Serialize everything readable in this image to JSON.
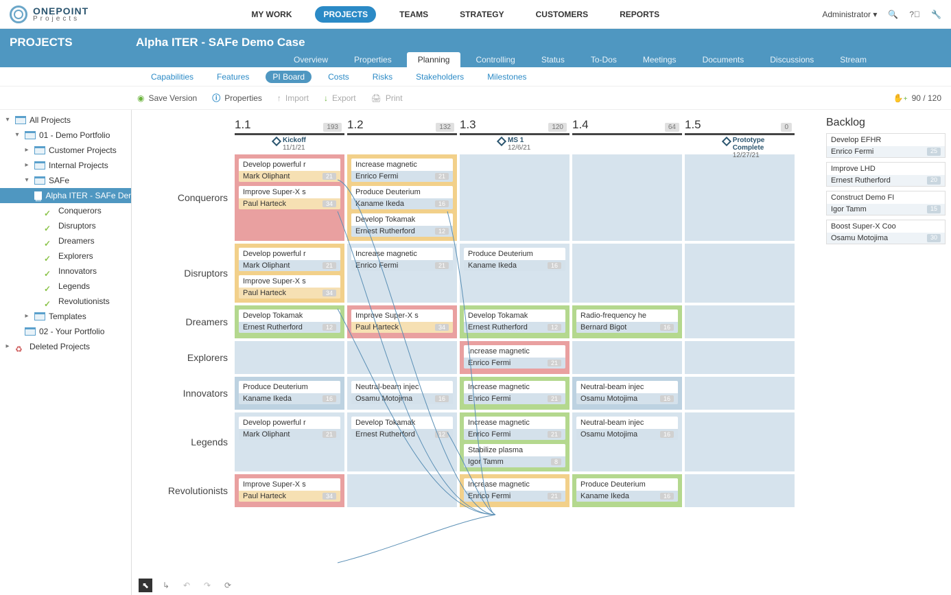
{
  "brand": {
    "line1": "ONEPOINT",
    "line2": "Projects"
  },
  "main_nav": [
    "MY WORK",
    "PROJECTS",
    "TEAMS",
    "STRATEGY",
    "CUSTOMERS",
    "REPORTS"
  ],
  "main_nav_active": "PROJECTS",
  "user_menu": "Administrator ▾",
  "section_label": "PROJECTS",
  "page_title": "Alpha ITER - SAFe Demo Case",
  "project_tabs": [
    "Overview",
    "Properties",
    "Planning",
    "Controlling",
    "Status",
    "To-Dos",
    "Meetings",
    "Documents",
    "Discussions",
    "Stream"
  ],
  "project_tab_active": "Planning",
  "sub_tabs": [
    "Capabilities",
    "Features",
    "PI Board",
    "Costs",
    "Risks",
    "Stakeholders",
    "Milestones"
  ],
  "sub_tab_active": "PI Board",
  "toolbar": {
    "save": "Save Version",
    "props": "Properties",
    "import": "Import",
    "export": "Export",
    "print": "Print",
    "counter": "90 / 120"
  },
  "tree": [
    {
      "t": "▾",
      "ic": "f",
      "label": "All Projects",
      "ind": 0
    },
    {
      "t": "▾",
      "ic": "f",
      "label": "01 - Demo Portfolio",
      "ind": 1
    },
    {
      "t": "▸",
      "ic": "f",
      "label": "Customer Projects",
      "ind": 2
    },
    {
      "t": "▸",
      "ic": "f",
      "label": "Internal Projects",
      "ind": 2
    },
    {
      "t": "▾",
      "ic": "f",
      "label": "SAFe",
      "ind": 2
    },
    {
      "t": "",
      "ic": "p",
      "label": "Alpha ITER - SAFe Demo",
      "ind": 3,
      "sel": true
    },
    {
      "t": "",
      "ic": "tm",
      "label": "Conquerors",
      "ind": 3
    },
    {
      "t": "",
      "ic": "tm",
      "label": "Disruptors",
      "ind": 3
    },
    {
      "t": "",
      "ic": "tm",
      "label": "Dreamers",
      "ind": 3
    },
    {
      "t": "",
      "ic": "tm",
      "label": "Explorers",
      "ind": 3
    },
    {
      "t": "",
      "ic": "tm",
      "label": "Innovators",
      "ind": 3
    },
    {
      "t": "",
      "ic": "tm",
      "label": "Legends",
      "ind": 3
    },
    {
      "t": "",
      "ic": "tm",
      "label": "Revolutionists",
      "ind": 3
    },
    {
      "t": "▸",
      "ic": "f",
      "label": "Templates",
      "ind": 2
    },
    {
      "t": "",
      "ic": "f",
      "label": "02 - Your Portfolio",
      "ind": 1
    },
    {
      "t": "▸",
      "ic": "tr",
      "label": "Deleted Projects",
      "ind": 0
    }
  ],
  "columns": [
    {
      "num": "1.1",
      "badge": "193"
    },
    {
      "num": "1.2",
      "badge": "132"
    },
    {
      "num": "1.3",
      "badge": "120"
    },
    {
      "num": "1.4",
      "badge": "64"
    },
    {
      "num": "1.5",
      "badge": "0"
    }
  ],
  "milestones": [
    {
      "col": 0,
      "title": "Kickoff",
      "date": "11/1/21"
    },
    {
      "col": 2,
      "title": "MS 1",
      "date": "12/6/21"
    },
    {
      "col": 4,
      "title": "Prototype Complete",
      "date": "12/27/21"
    }
  ],
  "colors": {
    "cell_blue": "#d6e3ed",
    "cell_dblue": "#bdd2e1",
    "card_orange": "#f2d08a",
    "card_red": "#e9a0a0",
    "card_green": "#b4d88e"
  },
  "rows": [
    {
      "name": "Conquerors",
      "cells": [
        {
          "bg": "red",
          "cards": [
            {
              "c": "orange",
              "t": "Develop powerful r",
              "a": "Mark Oliphant",
              "p": "21"
            },
            {
              "c": "orange",
              "t": "Improve Super-X s",
              "a": "Paul Harteck",
              "p": "34"
            }
          ]
        },
        {
          "bg": "orange",
          "cards": [
            {
              "c": "blue",
              "t": "Increase magnetic",
              "a": "Enrico Fermi",
              "p": "21"
            },
            {
              "c": "blue",
              "t": "Produce Deuterium",
              "a": "Kaname Ikeda",
              "p": "16"
            },
            {
              "c": "blue",
              "t": "Develop Tokamak",
              "a": "Ernest Rutherford",
              "p": "12"
            }
          ]
        },
        {
          "bg": "blue",
          "cards": []
        },
        {
          "bg": "blue",
          "cards": []
        },
        {
          "bg": "blue",
          "cards": []
        }
      ]
    },
    {
      "name": "Disruptors",
      "cells": [
        {
          "bg": "orange",
          "cards": [
            {
              "c": "blue",
              "t": "Develop powerful r",
              "a": "Mark Oliphant",
              "p": "21"
            },
            {
              "c": "orange",
              "t": "Improve Super-X s",
              "a": "Paul Harteck",
              "p": "34"
            }
          ]
        },
        {
          "bg": "blue",
          "cards": [
            {
              "c": "blue",
              "t": "Increase magnetic",
              "a": "Enrico Fermi",
              "p": "21"
            }
          ]
        },
        {
          "bg": "blue",
          "cards": [
            {
              "c": "blue",
              "t": "Produce Deuterium",
              "a": "Kaname Ikeda",
              "p": "16"
            }
          ]
        },
        {
          "bg": "blue",
          "cards": []
        },
        {
          "bg": "blue",
          "cards": []
        }
      ]
    },
    {
      "name": "Dreamers",
      "cells": [
        {
          "bg": "green",
          "cards": [
            {
              "c": "blue",
              "t": "Develop Tokamak",
              "a": "Ernest Rutherford",
              "p": "12"
            }
          ]
        },
        {
          "bg": "red",
          "cards": [
            {
              "c": "orange",
              "t": "Improve Super-X s",
              "a": "Paul Harteck",
              "p": "34"
            }
          ]
        },
        {
          "bg": "green",
          "cards": [
            {
              "c": "blue",
              "t": "Develop Tokamak",
              "a": "Ernest Rutherford",
              "p": "12"
            }
          ]
        },
        {
          "bg": "green",
          "cards": [
            {
              "c": "blue",
              "t": "Radio-frequency he",
              "a": "Bernard Bigot",
              "p": "16"
            }
          ]
        },
        {
          "bg": "blue",
          "cards": []
        }
      ]
    },
    {
      "name": "Explorers",
      "cells": [
        {
          "bg": "blue",
          "cards": []
        },
        {
          "bg": "blue",
          "cards": []
        },
        {
          "bg": "red",
          "cards": [
            {
              "c": "blue",
              "t": "Increase magnetic",
              "a": "Enrico Fermi",
              "p": "21"
            }
          ]
        },
        {
          "bg": "blue",
          "cards": []
        },
        {
          "bg": "blue",
          "cards": []
        }
      ]
    },
    {
      "name": "Innovators",
      "cells": [
        {
          "bg": "dblue",
          "cards": [
            {
              "c": "blue",
              "t": "Produce Deuterium",
              "a": "Kaname Ikeda",
              "p": "16"
            }
          ]
        },
        {
          "bg": "blue",
          "cards": [
            {
              "c": "blue",
              "t": "Neutral-beam injec",
              "a": "Osamu Motojima",
              "p": "16"
            }
          ]
        },
        {
          "bg": "green",
          "cards": [
            {
              "c": "blue",
              "t": "Increase magnetic",
              "a": "Enrico Fermi",
              "p": "21"
            }
          ]
        },
        {
          "bg": "dblue",
          "cards": [
            {
              "c": "blue",
              "t": "Neutral-beam injec",
              "a": "Osamu Motojima",
              "p": "16"
            }
          ]
        },
        {
          "bg": "blue",
          "cards": []
        }
      ]
    },
    {
      "name": "Legends",
      "cells": [
        {
          "bg": "blue",
          "cards": [
            {
              "c": "blue",
              "t": "Develop powerful r",
              "a": "Mark Oliphant",
              "p": "21"
            }
          ]
        },
        {
          "bg": "blue",
          "cards": [
            {
              "c": "blue",
              "t": "Develop Tokamak",
              "a": "Ernest Rutherford",
              "p": "12"
            }
          ]
        },
        {
          "bg": "green",
          "cards": [
            {
              "c": "blue",
              "t": "Increase magnetic",
              "a": "Enrico Fermi",
              "p": "21"
            },
            {
              "c": "blue",
              "t": "Stabilize plasma",
              "a": "Igor Tamm",
              "p": "8"
            }
          ]
        },
        {
          "bg": "blue",
          "cards": [
            {
              "c": "blue",
              "t": "Neutral-beam injec",
              "a": "Osamu Motojima",
              "p": "16"
            }
          ]
        },
        {
          "bg": "blue",
          "cards": []
        }
      ]
    },
    {
      "name": "Revolutionists",
      "cells": [
        {
          "bg": "red",
          "cards": [
            {
              "c": "orange",
              "t": "Improve Super-X s",
              "a": "Paul Harteck",
              "p": "34"
            }
          ]
        },
        {
          "bg": "blue",
          "cards": []
        },
        {
          "bg": "orange",
          "cards": [
            {
              "c": "blue",
              "t": "Increase magnetic",
              "a": "Enrico Fermi",
              "p": "21"
            }
          ]
        },
        {
          "bg": "green",
          "cards": [
            {
              "c": "blue",
              "t": "Produce Deuterium",
              "a": "Kaname Ikeda",
              "p": "16"
            }
          ]
        },
        {
          "bg": "blue",
          "cards": []
        }
      ]
    }
  ],
  "backlog_title": "Backlog",
  "backlog": [
    {
      "t": "Develop EFHR",
      "a": "Enrico Fermi",
      "p": "25"
    },
    {
      "t": "Improve LHD",
      "a": "Ernest Rutherford",
      "p": "20"
    },
    {
      "t": "Construct Demo FI",
      "a": "Igor Tamm",
      "p": "15"
    },
    {
      "t": "Boost Super-X Coo",
      "a": "Osamu Motojima",
      "p": "30"
    }
  ]
}
